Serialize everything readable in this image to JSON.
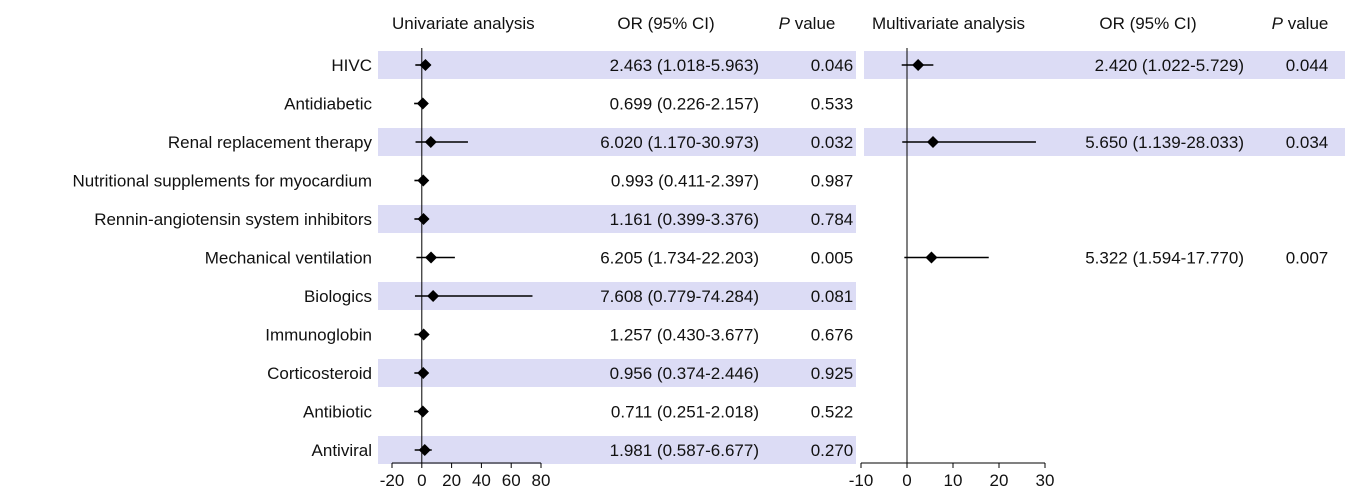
{
  "chart_data": [
    {
      "type": "forest",
      "panel_title": "Univariate analysis",
      "or_header": "OR (95% CI)",
      "p_header_italic": "P",
      "p_header_rest": " value",
      "colors": {
        "band": "#dcdcf5",
        "marker": "#000000"
      },
      "xlim": [
        -20,
        80
      ],
      "xticks": [
        -20,
        0,
        20,
        40,
        60,
        80
      ],
      "rows": [
        {
          "label": "HIVC",
          "or": 2.463,
          "low": 1.018,
          "high": 5.963,
          "or_text": "2.463 (1.018-5.963)",
          "p": "0.046",
          "shaded": true
        },
        {
          "label": "Antidiabetic",
          "or": 0.699,
          "low": 0.226,
          "high": 2.157,
          "or_text": "0.699 (0.226-2.157)",
          "p": "0.533",
          "shaded": false
        },
        {
          "label": "Renal replacement therapy",
          "or": 6.02,
          "low": 1.17,
          "high": 30.973,
          "or_text": "6.020 (1.170-30.973)",
          "p": "0.032",
          "shaded": true
        },
        {
          "label": "Nutritional supplements for myocardium",
          "or": 0.993,
          "low": 0.411,
          "high": 2.397,
          "or_text": "0.993 (0.411-2.397)",
          "p": "0.987",
          "shaded": false
        },
        {
          "label": "Rennin-angiotensin system inhibitors",
          "or": 1.161,
          "low": 0.399,
          "high": 3.376,
          "or_text": "1.161 (0.399-3.376)",
          "p": "0.784",
          "shaded": true
        },
        {
          "label": "Mechanical ventilation",
          "or": 6.205,
          "low": 1.734,
          "high": 22.203,
          "or_text": "6.205 (1.734-22.203)",
          "p": "0.005",
          "shaded": false
        },
        {
          "label": "Biologics",
          "or": 7.608,
          "low": 0.779,
          "high": 74.284,
          "or_text": "7.608 (0.779-74.284)",
          "p": "0.081",
          "shaded": true
        },
        {
          "label": "Immunoglobin",
          "or": 1.257,
          "low": 0.43,
          "high": 3.677,
          "or_text": "1.257 (0.430-3.677)",
          "p": "0.676",
          "shaded": false
        },
        {
          "label": "Corticosteroid",
          "or": 0.956,
          "low": 0.374,
          "high": 2.446,
          "or_text": "0.956 (0.374-2.446)",
          "p": "0.925",
          "shaded": true
        },
        {
          "label": "Antibiotic",
          "or": 0.711,
          "low": 0.251,
          "high": 2.018,
          "or_text": "0.711 (0.251-2.018)",
          "p": "0.522",
          "shaded": false
        },
        {
          "label": "Antiviral",
          "or": 1.981,
          "low": 0.587,
          "high": 6.677,
          "or_text": "1.981 (0.587-6.677)",
          "p": "0.270",
          "shaded": true
        }
      ]
    },
    {
      "type": "forest",
      "panel_title": "Multivariate analysis",
      "or_header": "OR (95% CI)",
      "p_header_italic": "P",
      "p_header_rest": " value",
      "colors": {
        "band": "#dcdcf5",
        "marker": "#000000"
      },
      "xlim": [
        -10,
        30
      ],
      "xticks": [
        -10,
        0,
        10,
        20,
        30
      ],
      "rows": [
        {
          "row_index": 0,
          "or": 2.42,
          "low": 1.022,
          "high": 5.729,
          "or_text": "2.420 (1.022-5.729)",
          "p": "0.044",
          "shaded": true
        },
        {
          "row_index": 2,
          "or": 5.65,
          "low": 1.139,
          "high": 28.033,
          "or_text": "5.650 (1.139-28.033)",
          "p": "0.034",
          "shaded": true
        },
        {
          "row_index": 5,
          "or": 5.322,
          "low": 1.594,
          "high": 17.77,
          "or_text": "5.322 (1.594-17.770)",
          "p": "0.007",
          "shaded": false
        }
      ]
    }
  ]
}
